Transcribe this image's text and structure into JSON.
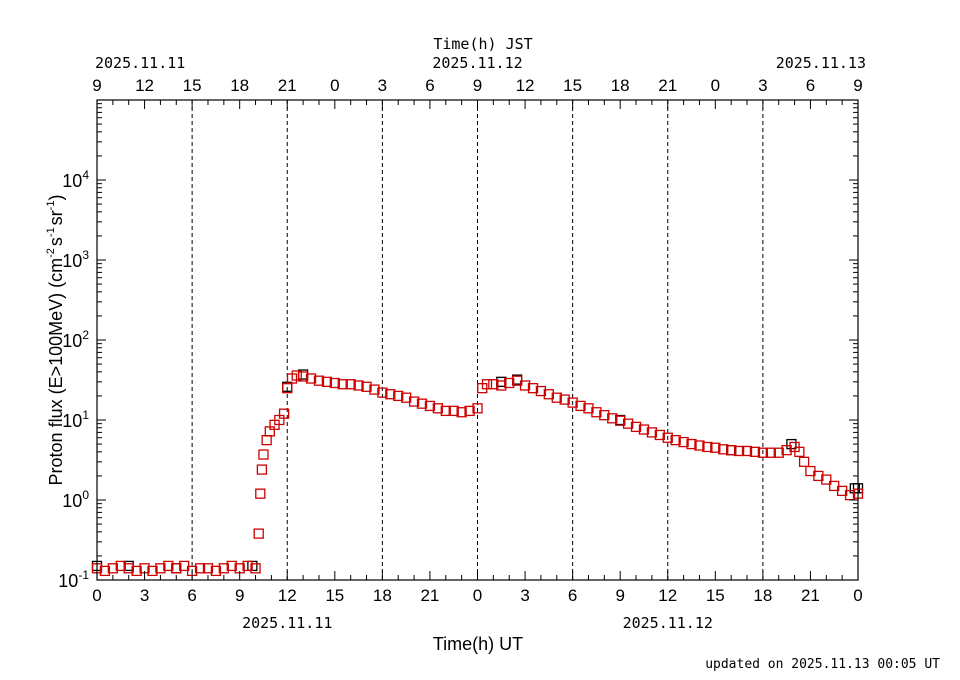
{
  "chart_data": {
    "type": "scatter",
    "title": "Time(h) JST",
    "xlabel": "Time(h) UT",
    "ylabel": {
      "base": "Proton flux (E>100MeV) (cm",
      "sup1": "-2",
      "mid1": "s",
      "sup2": "-1",
      "mid2": "sr",
      "sup3": "-1",
      "end": ")"
    },
    "xlim": [
      0,
      48
    ],
    "ylim": [
      0.1,
      100000
    ],
    "yscale": "log",
    "y_tick_labels": [
      {
        "base": "10",
        "exp": "-1",
        "value": 0.1
      },
      {
        "base": "10",
        "exp": "0",
        "value": 1
      },
      {
        "base": "10",
        "exp": "1",
        "value": 10
      },
      {
        "base": "10",
        "exp": "2",
        "value": 100
      },
      {
        "base": "10",
        "exp": "3",
        "value": 1000
      },
      {
        "base": "10",
        "exp": "4",
        "value": 10000
      }
    ],
    "bottom_tick_labels": [
      "0",
      "3",
      "6",
      "9",
      "12",
      "15",
      "18",
      "21",
      "0",
      "3",
      "6",
      "9",
      "12",
      "15",
      "18",
      "21",
      "0"
    ],
    "top_tick_labels": [
      "9",
      "12",
      "15",
      "18",
      "21",
      "0",
      "3",
      "6",
      "9",
      "12",
      "15",
      "18",
      "21",
      "0",
      "3",
      "6",
      "9"
    ],
    "bottom_date_labels": [
      {
        "text": "2025.11.11",
        "at_hour": 12
      },
      {
        "text": "2025.11.12",
        "at_hour": 36
      }
    ],
    "top_date_labels": [
      {
        "text": "2025.11.11",
        "at_hour": 0
      },
      {
        "text": "2025.11.12",
        "at_hour": 24
      },
      {
        "text": "2025.11.13",
        "at_hour": 48
      }
    ],
    "dashed_lines_at_hour": [
      6,
      12,
      18,
      24,
      30,
      36,
      42
    ],
    "series": [
      {
        "name": "primary",
        "color": "#cc0000",
        "marker": "square",
        "x": [
          0,
          0.5,
          1,
          1.5,
          2,
          2.5,
          3,
          3.5,
          4,
          4.5,
          5,
          5.5,
          6,
          6.5,
          7,
          7.5,
          8,
          8.5,
          9,
          9.5,
          10,
          10.2,
          10.3,
          10.4,
          10.5,
          10.7,
          10.9,
          11.2,
          11.5,
          11.8,
          12,
          12.3,
          12.6,
          13,
          13.5,
          14,
          14.5,
          15,
          15.5,
          16,
          16.5,
          17,
          17.5,
          18,
          18.5,
          19,
          19.5,
          20,
          20.5,
          21,
          21.5,
          22,
          22.5,
          23,
          23.5,
          24,
          24.3,
          24.6,
          25,
          25.5,
          26,
          26.5,
          27,
          27.5,
          28,
          28.5,
          29,
          29.5,
          30,
          30.5,
          31,
          31.5,
          32,
          32.5,
          33,
          33.5,
          34,
          34.5,
          35,
          35.5,
          36,
          36.5,
          37,
          37.5,
          38,
          38.5,
          39,
          39.5,
          40,
          40.5,
          41,
          41.5,
          42,
          42.5,
          43,
          43.5,
          44,
          44.3,
          44.6,
          45,
          45.5,
          46,
          46.5,
          47,
          47.5,
          48
        ],
        "y": [
          0.14,
          0.13,
          0.14,
          0.15,
          0.14,
          0.13,
          0.14,
          0.13,
          0.14,
          0.15,
          0.14,
          0.15,
          0.13,
          0.14,
          0.14,
          0.13,
          0.14,
          0.15,
          0.14,
          0.15,
          0.14,
          0.38,
          1.2,
          2.4,
          3.7,
          5.6,
          7.2,
          8.7,
          10,
          12,
          25,
          33,
          36,
          35,
          33,
          31,
          30,
          29,
          28,
          28,
          27,
          26,
          24,
          22,
          21,
          20,
          19,
          17,
          16,
          15,
          14,
          13,
          13,
          12.5,
          13,
          14,
          25,
          28,
          28,
          27,
          29,
          31,
          27,
          25,
          23,
          21,
          19,
          18,
          16.5,
          15,
          14,
          12.5,
          11.5,
          10.5,
          9.8,
          9,
          8.2,
          7.6,
          7,
          6.5,
          6,
          5.6,
          5.3,
          5,
          4.8,
          4.6,
          4.5,
          4.3,
          4.2,
          4.1,
          4.1,
          4.0,
          3.9,
          3.9,
          3.9,
          4.2,
          4.6,
          4.0,
          3.0,
          2.3,
          2.0,
          1.8,
          1.5,
          1.3,
          1.15,
          1.2
        ]
      },
      {
        "name": "secondary",
        "color": "#000000",
        "marker": "square",
        "x": [
          0,
          2,
          5,
          9.8,
          12,
          13,
          25.5,
          26.5,
          33,
          40,
          43.8,
          47.8,
          48
        ],
        "y": [
          0.15,
          0.15,
          0.14,
          0.15,
          26,
          37,
          30,
          32,
          10,
          4.2,
          5.0,
          1.4,
          1.4
        ]
      }
    ]
  },
  "footer": {
    "updated": "updated on 2025.11.13 00:05 UT"
  }
}
